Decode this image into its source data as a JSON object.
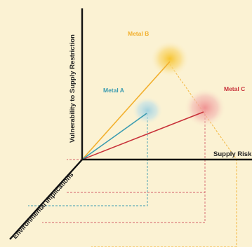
{
  "axes": {
    "vertical_label": "Vulnerability to Supply Restriction",
    "horizontal_label": "Supply Risk",
    "depth_label": "Environmental Implications"
  },
  "metals": [
    {
      "name": "Metal A",
      "color": "#3a9bb0"
    },
    {
      "name": "Metal B",
      "color": "#f2b02e"
    },
    {
      "name": "Metal C",
      "color": "#c8323a"
    }
  ],
  "colors": {
    "background": "#fbf2d3",
    "axis": "#111111"
  }
}
